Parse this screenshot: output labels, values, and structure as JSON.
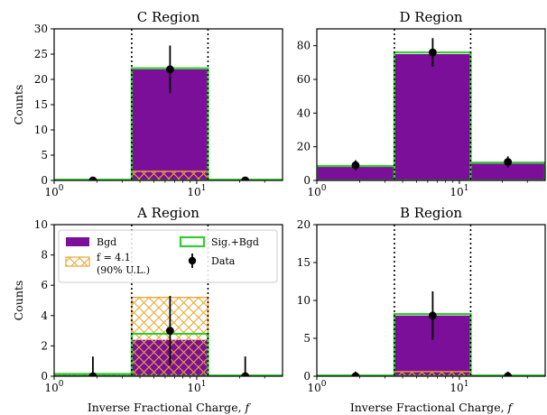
{
  "legend_labels": {
    "bgd": "Bgd",
    "sig_bgd": "Sig.+Bgd",
    "signal_line1": "f = 4.1",
    "signal_line2": "(90% U.L.)",
    "data": "Data"
  },
  "colors": {
    "bgd": "#7b0f99",
    "sig_bgd": "#33cc33",
    "signal_hatch": "#e8a735",
    "data": "#000000",
    "boundary": "#000000"
  },
  "chart_data": [
    {
      "type": "bar",
      "title": "C Region",
      "xlabel": "",
      "ylabel": "Counts",
      "x_scale": "log",
      "xlim": [
        1,
        40
      ],
      "ylim": [
        0,
        30
      ],
      "yticks": [
        0,
        5,
        10,
        15,
        20,
        25,
        30
      ],
      "xticks": [
        1,
        10
      ],
      "bin_edges": [
        1,
        3.5,
        12,
        40
      ],
      "boundaries": [
        3.5,
        12
      ],
      "bgd": [
        0.15,
        22,
        0.15
      ],
      "signal": [
        0,
        1.8,
        0
      ],
      "sig_bgd": [
        0.15,
        22.2,
        0.15
      ],
      "data": {
        "x": [
          1.87,
          6.5,
          21.9
        ],
        "y": [
          0,
          22,
          0
        ],
        "err": [
          0.6,
          4.7,
          0.6
        ]
      },
      "legend": false
    },
    {
      "type": "bar",
      "title": "D Region",
      "xlabel": "",
      "ylabel": "",
      "x_scale": "log",
      "xlim": [
        1,
        40
      ],
      "ylim": [
        0,
        90
      ],
      "yticks": [
        0,
        20,
        40,
        60,
        80
      ],
      "xticks": [
        1,
        10
      ],
      "bin_edges": [
        1,
        3.5,
        12,
        40
      ],
      "boundaries": [
        3.5,
        12
      ],
      "bgd": [
        8,
        75,
        10
      ],
      "signal": [
        0,
        0,
        0
      ],
      "sig_bgd": [
        8.6,
        76,
        10.6
      ],
      "data": {
        "x": [
          1.87,
          6.5,
          21.9
        ],
        "y": [
          9,
          76,
          11
        ],
        "err": [
          3,
          8.5,
          3.3
        ]
      },
      "legend": false
    },
    {
      "type": "bar",
      "title": "A Region",
      "xlabel": "Inverse Fractional Charge, f",
      "ylabel": "Counts",
      "x_scale": "log",
      "xlim": [
        1,
        40
      ],
      "ylim": [
        0,
        10
      ],
      "yticks": [
        0,
        2,
        4,
        6,
        8,
        10
      ],
      "xticks": [
        1,
        10
      ],
      "bin_edges": [
        1,
        3.5,
        12,
        40
      ],
      "boundaries": [
        3.5,
        12
      ],
      "bgd": [
        0.1,
        2.4,
        0.05
      ],
      "signal": [
        0.05,
        2.8,
        0
      ],
      "sig_bgd": [
        0.15,
        2.8,
        0.05
      ],
      "data": {
        "x": [
          1.87,
          6.5,
          21.9
        ],
        "y": [
          0,
          3,
          0
        ],
        "err": [
          1.3,
          2.3,
          1.3
        ]
      },
      "legend": true
    },
    {
      "type": "bar",
      "title": "B Region",
      "xlabel": "Inverse Fractional Charge, f",
      "ylabel": "",
      "x_scale": "log",
      "xlim": [
        1,
        40
      ],
      "ylim": [
        0,
        20
      ],
      "yticks": [
        0,
        5,
        10,
        15,
        20
      ],
      "xticks": [
        1,
        10
      ],
      "bin_edges": [
        1,
        3.5,
        12,
        40
      ],
      "boundaries": [
        3.5,
        12
      ],
      "bgd": [
        0.1,
        8,
        0.1
      ],
      "signal": [
        0,
        0.6,
        0
      ],
      "sig_bgd": [
        0.1,
        8.2,
        0.1
      ],
      "data": {
        "x": [
          1.87,
          6.5,
          21.9
        ],
        "y": [
          0,
          8,
          0
        ],
        "err": [
          0.6,
          3.2,
          0.6
        ]
      },
      "legend": false
    }
  ]
}
